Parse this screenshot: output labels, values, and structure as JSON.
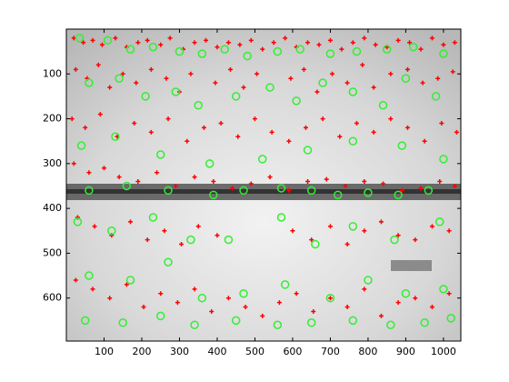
{
  "chart_data": {
    "type": "scatter",
    "xlim": [
      0,
      1046
    ],
    "ylim": [
      0,
      696
    ],
    "y_reversed": true,
    "xticks": [
      100,
      200,
      300,
      400,
      500,
      600,
      700,
      800,
      900,
      1000
    ],
    "yticks": [
      100,
      200,
      300,
      400,
      500,
      600
    ],
    "series": [
      {
        "marker": "+",
        "color": "#ff0000",
        "x": [
          20,
          45,
          70,
          95,
          130,
          160,
          190,
          215,
          250,
          275,
          310,
          340,
          370,
          400,
          430,
          460,
          490,
          520,
          550,
          580,
          610,
          640,
          670,
          700,
          730,
          760,
          790,
          820,
          850,
          880,
          910,
          940,
          970,
          1000,
          1030,
          25,
          55,
          85,
          115,
          150,
          185,
          225,
          265,
          300,
          330,
          395,
          435,
          470,
          505,
          595,
          630,
          665,
          705,
          745,
          785,
          815,
          860,
          905,
          945,
          985,
          1025,
          15,
          50,
          90,
          135,
          180,
          225,
          270,
          320,
          365,
          410,
          455,
          500,
          545,
          590,
          635,
          680,
          725,
          770,
          815,
          860,
          905,
          950,
          995,
          1035,
          20,
          60,
          100,
          140,
          190,
          240,
          290,
          340,
          390,
          440,
          490,
          540,
          590,
          640,
          690,
          740,
          790,
          840,
          890,
          940,
          990,
          1030,
          30,
          75,
          120,
          170,
          215,
          260,
          305,
          350,
          400,
          600,
          650,
          700,
          745,
          790,
          835,
          880,
          925,
          970,
          1015,
          25,
          70,
          115,
          160,
          205,
          250,
          295,
          340,
          385,
          430,
          475,
          520,
          565,
          610,
          655,
          700,
          745,
          790,
          835,
          880,
          925,
          970,
          1015
        ],
        "y": [
          20,
          30,
          25,
          35,
          20,
          40,
          30,
          25,
          35,
          20,
          45,
          30,
          25,
          40,
          30,
          35,
          25,
          45,
          30,
          20,
          40,
          30,
          35,
          25,
          45,
          30,
          20,
          35,
          40,
          25,
          30,
          45,
          20,
          35,
          30,
          90,
          110,
          80,
          130,
          100,
          120,
          90,
          110,
          140,
          100,
          120,
          90,
          130,
          100,
          110,
          90,
          140,
          100,
          120,
          80,
          130,
          100,
          90,
          120,
          110,
          95,
          200,
          220,
          190,
          240,
          210,
          230,
          200,
          250,
          220,
          210,
          240,
          200,
          230,
          250,
          220,
          200,
          240,
          210,
          230,
          200,
          220,
          250,
          210,
          230,
          300,
          320,
          310,
          330,
          340,
          320,
          350,
          330,
          340,
          355,
          345,
          330,
          360,
          340,
          335,
          350,
          340,
          345,
          360,
          355,
          340,
          350,
          420,
          440,
          460,
          430,
          470,
          450,
          480,
          440,
          460,
          450,
          470,
          440,
          480,
          450,
          430,
          460,
          470,
          440,
          450,
          560,
          580,
          600,
          570,
          620,
          590,
          610,
          580,
          630,
          600,
          620,
          640,
          610,
          590,
          630,
          600,
          620,
          580,
          640,
          610,
          600,
          620,
          590
        ]
      },
      {
        "marker": "o",
        "color": "#33ee33",
        "x": [
          35,
          110,
          170,
          230,
          300,
          360,
          420,
          480,
          560,
          620,
          700,
          770,
          850,
          920,
          1000,
          60,
          140,
          210,
          290,
          350,
          450,
          540,
          610,
          680,
          760,
          840,
          900,
          980,
          40,
          130,
          250,
          380,
          520,
          640,
          760,
          890,
          1000,
          60,
          160,
          270,
          390,
          470,
          570,
          650,
          720,
          800,
          880,
          960,
          30,
          120,
          230,
          330,
          430,
          570,
          660,
          760,
          870,
          990,
          60,
          170,
          270,
          360,
          470,
          580,
          700,
          800,
          900,
          1000,
          50,
          150,
          250,
          340,
          450,
          560,
          650,
          760,
          860,
          950,
          1020
        ],
        "y": [
          20,
          25,
          45,
          40,
          50,
          55,
          45,
          60,
          50,
          45,
          55,
          50,
          45,
          40,
          55,
          120,
          110,
          150,
          140,
          170,
          150,
          130,
          160,
          120,
          140,
          170,
          110,
          150,
          260,
          240,
          280,
          300,
          290,
          270,
          250,
          260,
          290,
          360,
          350,
          360,
          370,
          360,
          355,
          360,
          370,
          365,
          370,
          360,
          430,
          450,
          420,
          470,
          470,
          420,
          480,
          440,
          470,
          430,
          550,
          560,
          520,
          600,
          590,
          570,
          600,
          560,
          590,
          580,
          650,
          655,
          640,
          660,
          650,
          660,
          655,
          650,
          660,
          655,
          645
        ]
      }
    ]
  }
}
